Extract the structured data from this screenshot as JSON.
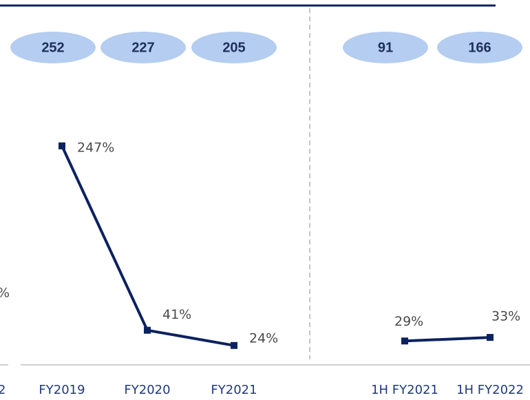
{
  "chart_data": [
    {
      "type": "line",
      "color": "#0b2260",
      "categories": [
        "FY2019",
        "FY2020",
        "FY2021"
      ],
      "values": [
        247,
        41,
        24
      ],
      "value_labels": [
        "247%",
        "41%",
        "24%"
      ],
      "bubbles": [
        252,
        227,
        205
      ],
      "bubble_color": "#b4cdf0"
    },
    {
      "type": "line",
      "color": "#0b2260",
      "categories": [
        "1H FY2021",
        "1H FY2022"
      ],
      "values": [
        29,
        33
      ],
      "value_labels": [
        "29%",
        "33%"
      ],
      "bubbles": [
        91,
        166
      ],
      "bubble_color": "#b4cdf0"
    }
  ],
  "edge_fragments": [
    "%",
    "2"
  ]
}
